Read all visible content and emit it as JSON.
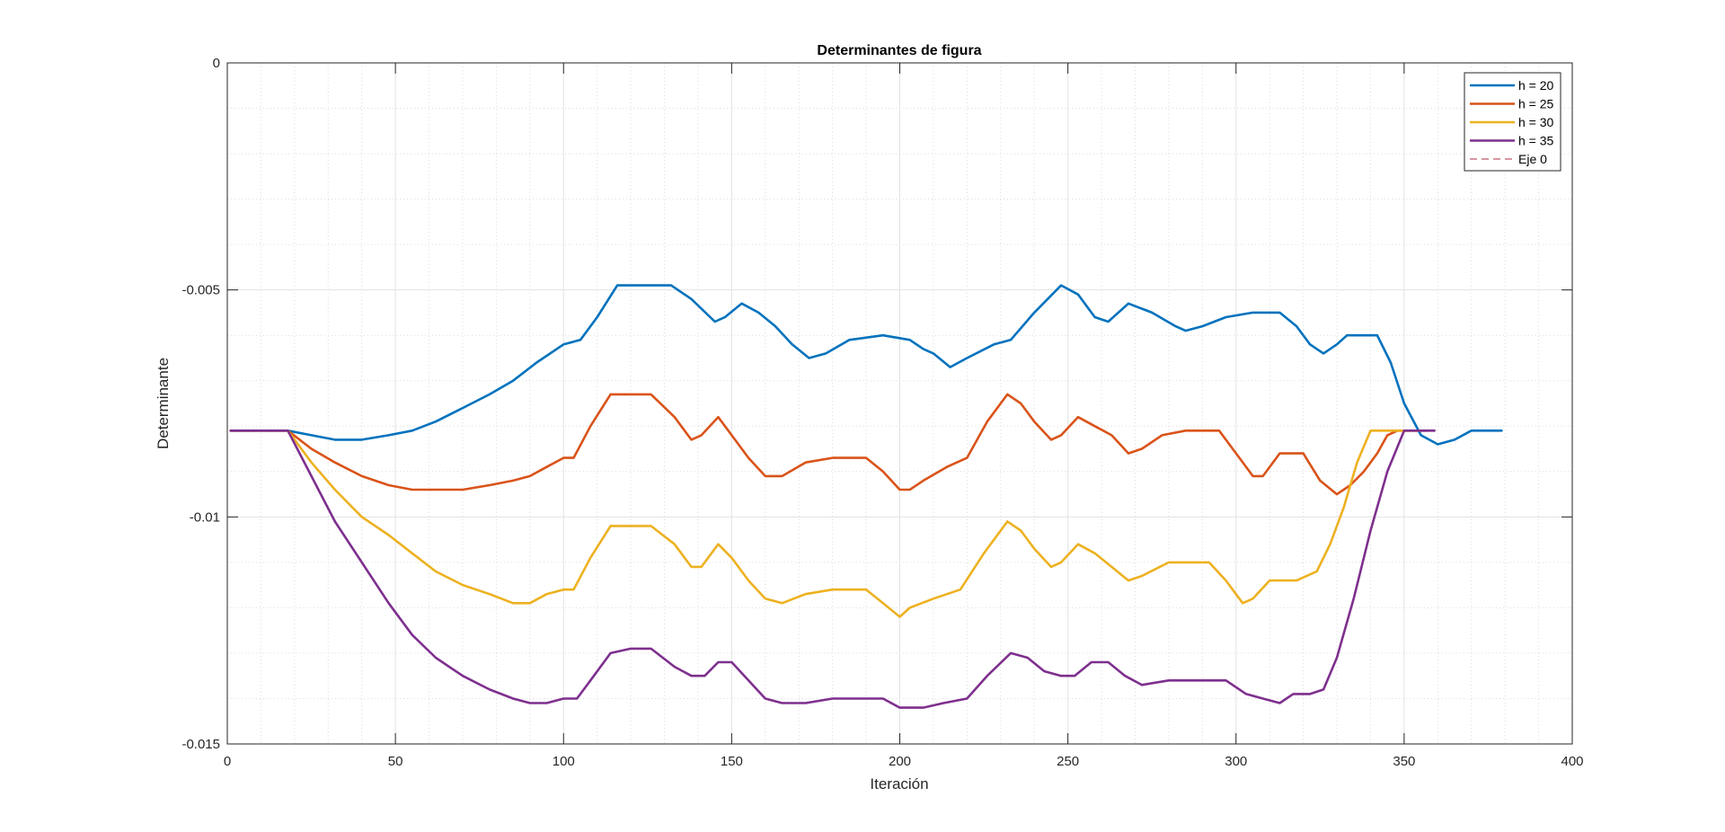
{
  "chart_data": {
    "type": "line",
    "title": "Determinantes de figura",
    "xlabel": "Iteración",
    "ylabel": "Determinante",
    "xlim": [
      0,
      400
    ],
    "ylim": [
      -0.015,
      0
    ],
    "x_ticks": [
      0,
      50,
      100,
      150,
      200,
      250,
      300,
      350,
      400
    ],
    "y_ticks": [
      0,
      -0.005,
      -0.01,
      -0.015
    ],
    "x_tick_labels": [
      "0",
      "50",
      "100",
      "150",
      "200",
      "250",
      "300",
      "350",
      "400"
    ],
    "y_tick_labels": [
      "0",
      "-0.005",
      "-0.01",
      "-0.015"
    ],
    "grid": true,
    "minor_grid": true,
    "legend_position": "top-right",
    "series": [
      {
        "name": "h = 20",
        "color": "#0072BD",
        "style": "solid",
        "points": [
          [
            1,
            -0.0081
          ],
          [
            18,
            -0.0081
          ],
          [
            25,
            -0.0082
          ],
          [
            32,
            -0.0083
          ],
          [
            40,
            -0.0083
          ],
          [
            48,
            -0.0082
          ],
          [
            55,
            -0.0081
          ],
          [
            62,
            -0.0079
          ],
          [
            70,
            -0.0076
          ],
          [
            78,
            -0.0073
          ],
          [
            85,
            -0.007
          ],
          [
            92,
            -0.0066
          ],
          [
            100,
            -0.0062
          ],
          [
            105,
            -0.0061
          ],
          [
            110,
            -0.0056
          ],
          [
            116,
            -0.0049
          ],
          [
            125,
            -0.0049
          ],
          [
            132,
            -0.0049
          ],
          [
            138,
            -0.0052
          ],
          [
            145,
            -0.0057
          ],
          [
            148,
            -0.0056
          ],
          [
            153,
            -0.0053
          ],
          [
            158,
            -0.0055
          ],
          [
            163,
            -0.0058
          ],
          [
            168,
            -0.0062
          ],
          [
            173,
            -0.0065
          ],
          [
            178,
            -0.0064
          ],
          [
            185,
            -0.0061
          ],
          [
            195,
            -0.006
          ],
          [
            203,
            -0.0061
          ],
          [
            207,
            -0.0063
          ],
          [
            210,
            -0.0064
          ],
          [
            215,
            -0.0067
          ],
          [
            220,
            -0.0065
          ],
          [
            228,
            -0.0062
          ],
          [
            233,
            -0.0061
          ],
          [
            240,
            -0.0055
          ],
          [
            248,
            -0.0049
          ],
          [
            253,
            -0.0051
          ],
          [
            258,
            -0.0056
          ],
          [
            262,
            -0.0057
          ],
          [
            268,
            -0.0053
          ],
          [
            275,
            -0.0055
          ],
          [
            282,
            -0.0058
          ],
          [
            285,
            -0.0059
          ],
          [
            290,
            -0.0058
          ],
          [
            297,
            -0.0056
          ],
          [
            305,
            -0.0055
          ],
          [
            313,
            -0.0055
          ],
          [
            318,
            -0.0058
          ],
          [
            322,
            -0.0062
          ],
          [
            326,
            -0.0064
          ],
          [
            330,
            -0.0062
          ],
          [
            333,
            -0.006
          ],
          [
            338,
            -0.006
          ],
          [
            342,
            -0.006
          ],
          [
            346,
            -0.0066
          ],
          [
            350,
            -0.0075
          ],
          [
            355,
            -0.0082
          ],
          [
            360,
            -0.0084
          ],
          [
            365,
            -0.0083
          ],
          [
            370,
            -0.0081
          ],
          [
            375,
            -0.0081
          ],
          [
            379,
            -0.0081
          ]
        ]
      },
      {
        "name": "h = 25",
        "color": "#D95319",
        "style": "solid",
        "points": [
          [
            1,
            -0.0081
          ],
          [
            18,
            -0.0081
          ],
          [
            25,
            -0.0085
          ],
          [
            32,
            -0.0088
          ],
          [
            40,
            -0.0091
          ],
          [
            48,
            -0.0093
          ],
          [
            55,
            -0.0094
          ],
          [
            62,
            -0.0094
          ],
          [
            70,
            -0.0094
          ],
          [
            78,
            -0.0093
          ],
          [
            85,
            -0.0092
          ],
          [
            90,
            -0.0091
          ],
          [
            95,
            -0.0089
          ],
          [
            100,
            -0.0087
          ],
          [
            103,
            -0.0087
          ],
          [
            108,
            -0.008
          ],
          [
            114,
            -0.0073
          ],
          [
            120,
            -0.0073
          ],
          [
            126,
            -0.0073
          ],
          [
            133,
            -0.0078
          ],
          [
            138,
            -0.0083
          ],
          [
            141,
            -0.0082
          ],
          [
            146,
            -0.0078
          ],
          [
            150,
            -0.0082
          ],
          [
            155,
            -0.0087
          ],
          [
            160,
            -0.0091
          ],
          [
            165,
            -0.0091
          ],
          [
            172,
            -0.0088
          ],
          [
            180,
            -0.0087
          ],
          [
            190,
            -0.0087
          ],
          [
            195,
            -0.009
          ],
          [
            200,
            -0.0094
          ],
          [
            203,
            -0.0094
          ],
          [
            207,
            -0.0092
          ],
          [
            214,
            -0.0089
          ],
          [
            220,
            -0.0087
          ],
          [
            226,
            -0.0079
          ],
          [
            232,
            -0.0073
          ],
          [
            236,
            -0.0075
          ],
          [
            240,
            -0.0079
          ],
          [
            245,
            -0.0083
          ],
          [
            248,
            -0.0082
          ],
          [
            253,
            -0.0078
          ],
          [
            258,
            -0.008
          ],
          [
            263,
            -0.0082
          ],
          [
            268,
            -0.0086
          ],
          [
            272,
            -0.0085
          ],
          [
            278,
            -0.0082
          ],
          [
            285,
            -0.0081
          ],
          [
            295,
            -0.0081
          ],
          [
            300,
            -0.0086
          ],
          [
            305,
            -0.0091
          ],
          [
            308,
            -0.0091
          ],
          [
            313,
            -0.0086
          ],
          [
            320,
            -0.0086
          ],
          [
            325,
            -0.0092
          ],
          [
            330,
            -0.0095
          ],
          [
            334,
            -0.0093
          ],
          [
            338,
            -0.009
          ],
          [
            342,
            -0.0086
          ],
          [
            345,
            -0.0082
          ],
          [
            348,
            -0.0081
          ],
          [
            353,
            -0.0081
          ],
          [
            357,
            -0.0081
          ]
        ]
      },
      {
        "name": "h = 30",
        "color": "#EDB120",
        "style": "solid",
        "points": [
          [
            1,
            -0.0081
          ],
          [
            18,
            -0.0081
          ],
          [
            25,
            -0.0088
          ],
          [
            32,
            -0.0094
          ],
          [
            40,
            -0.01
          ],
          [
            48,
            -0.0104
          ],
          [
            55,
            -0.0108
          ],
          [
            62,
            -0.0112
          ],
          [
            70,
            -0.0115
          ],
          [
            78,
            -0.0117
          ],
          [
            85,
            -0.0119
          ],
          [
            90,
            -0.0119
          ],
          [
            95,
            -0.0117
          ],
          [
            100,
            -0.0116
          ],
          [
            103,
            -0.0116
          ],
          [
            108,
            -0.0109
          ],
          [
            114,
            -0.0102
          ],
          [
            120,
            -0.0102
          ],
          [
            126,
            -0.0102
          ],
          [
            133,
            -0.0106
          ],
          [
            138,
            -0.0111
          ],
          [
            141,
            -0.0111
          ],
          [
            146,
            -0.0106
          ],
          [
            150,
            -0.0109
          ],
          [
            155,
            -0.0114
          ],
          [
            160,
            -0.0118
          ],
          [
            165,
            -0.0119
          ],
          [
            172,
            -0.0117
          ],
          [
            180,
            -0.0116
          ],
          [
            190,
            -0.0116
          ],
          [
            195,
            -0.0119
          ],
          [
            200,
            -0.0122
          ],
          [
            203,
            -0.012
          ],
          [
            210,
            -0.0118
          ],
          [
            218,
            -0.0116
          ],
          [
            225,
            -0.0108
          ],
          [
            232,
            -0.0101
          ],
          [
            236,
            -0.0103
          ],
          [
            240,
            -0.0107
          ],
          [
            245,
            -0.0111
          ],
          [
            248,
            -0.011
          ],
          [
            253,
            -0.0106
          ],
          [
            258,
            -0.0108
          ],
          [
            263,
            -0.0111
          ],
          [
            268,
            -0.0114
          ],
          [
            272,
            -0.0113
          ],
          [
            280,
            -0.011
          ],
          [
            292,
            -0.011
          ],
          [
            297,
            -0.0114
          ],
          [
            302,
            -0.0119
          ],
          [
            305,
            -0.0118
          ],
          [
            310,
            -0.0114
          ],
          [
            318,
            -0.0114
          ],
          [
            324,
            -0.0112
          ],
          [
            328,
            -0.0106
          ],
          [
            332,
            -0.0098
          ],
          [
            336,
            -0.0088
          ],
          [
            340,
            -0.0081
          ],
          [
            345,
            -0.0081
          ],
          [
            350,
            -0.0081
          ],
          [
            355,
            -0.0081
          ]
        ]
      },
      {
        "name": "h = 35",
        "color": "#7E2F8E",
        "style": "solid",
        "points": [
          [
            1,
            -0.0081
          ],
          [
            18,
            -0.0081
          ],
          [
            25,
            -0.0091
          ],
          [
            32,
            -0.0101
          ],
          [
            40,
            -0.011
          ],
          [
            48,
            -0.0119
          ],
          [
            55,
            -0.0126
          ],
          [
            62,
            -0.0131
          ],
          [
            70,
            -0.0135
          ],
          [
            78,
            -0.0138
          ],
          [
            85,
            -0.014
          ],
          [
            90,
            -0.0141
          ],
          [
            95,
            -0.0141
          ],
          [
            100,
            -0.014
          ],
          [
            104,
            -0.014
          ],
          [
            108,
            -0.0136
          ],
          [
            114,
            -0.013
          ],
          [
            120,
            -0.0129
          ],
          [
            126,
            -0.0129
          ],
          [
            133,
            -0.0133
          ],
          [
            138,
            -0.0135
          ],
          [
            142,
            -0.0135
          ],
          [
            146,
            -0.0132
          ],
          [
            150,
            -0.0132
          ],
          [
            155,
            -0.0136
          ],
          [
            160,
            -0.014
          ],
          [
            165,
            -0.0141
          ],
          [
            172,
            -0.0141
          ],
          [
            180,
            -0.014
          ],
          [
            195,
            -0.014
          ],
          [
            200,
            -0.0142
          ],
          [
            207,
            -0.0142
          ],
          [
            213,
            -0.0141
          ],
          [
            220,
            -0.014
          ],
          [
            226,
            -0.0135
          ],
          [
            233,
            -0.013
          ],
          [
            238,
            -0.0131
          ],
          [
            243,
            -0.0134
          ],
          [
            248,
            -0.0135
          ],
          [
            252,
            -0.0135
          ],
          [
            257,
            -0.0132
          ],
          [
            262,
            -0.0132
          ],
          [
            267,
            -0.0135
          ],
          [
            272,
            -0.0137
          ],
          [
            280,
            -0.0136
          ],
          [
            290,
            -0.0136
          ],
          [
            297,
            -0.0136
          ],
          [
            303,
            -0.0139
          ],
          [
            308,
            -0.014
          ],
          [
            313,
            -0.0141
          ],
          [
            317,
            -0.0139
          ],
          [
            322,
            -0.0139
          ],
          [
            326,
            -0.0138
          ],
          [
            330,
            -0.0131
          ],
          [
            335,
            -0.0118
          ],
          [
            340,
            -0.0103
          ],
          [
            345,
            -0.009
          ],
          [
            350,
            -0.0081
          ],
          [
            355,
            -0.0081
          ],
          [
            359,
            -0.0081
          ]
        ]
      },
      {
        "name": "Eje 0",
        "color": "#A2142F",
        "style": "dashed",
        "points": []
      }
    ]
  }
}
